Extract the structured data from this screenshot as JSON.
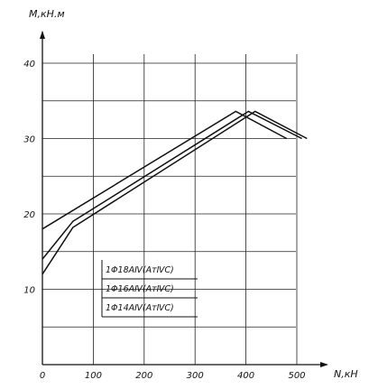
{
  "chart_data": {
    "type": "line",
    "xlabel": "N,кН",
    "ylabel": "M,кН.м",
    "xlim": [
      0,
      520
    ],
    "ylim": [
      0,
      45
    ],
    "x_ticks": [
      0,
      100,
      200,
      300,
      400,
      500
    ],
    "y_ticks": [
      10,
      20,
      30,
      40
    ],
    "x_tick_labels": [
      "0",
      "100",
      "200",
      "300",
      "400",
      "500"
    ],
    "y_tick_labels": [
      "10",
      "20",
      "30",
      "40"
    ],
    "grid": true,
    "legend": {
      "placement": "center-left",
      "entries": [
        "1Φ18AⅣ(AтⅣC)",
        "1Φ16AⅣ(AтⅣC)",
        "1Φ14AⅣ(AтⅣC)"
      ]
    },
    "series": [
      {
        "x": [
          0,
          380,
          480
        ],
        "y": [
          18,
          33.6,
          30
        ]
      },
      {
        "x": [
          0,
          60,
          405,
          510
        ],
        "y": [
          14,
          19,
          33.6,
          30
        ]
      },
      {
        "x": [
          0,
          60,
          418,
          520
        ],
        "y": [
          12,
          18.2,
          33.6,
          30
        ]
      }
    ]
  }
}
